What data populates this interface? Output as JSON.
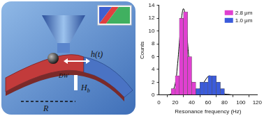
{
  "chart_data": {
    "type": "histogram",
    "bins": [
      15,
      20,
      25,
      30,
      35,
      40,
      45,
      50,
      55,
      60,
      65,
      70,
      75,
      80
    ],
    "series": [
      {
        "name": "2.8 μm",
        "color": "#e040d0",
        "counts": [
          1,
          3,
          12,
          13,
          6,
          2,
          0,
          0,
          0,
          0,
          0,
          0,
          0
        ]
      },
      {
        "name": "1.0 μm",
        "color": "#3b5bdb",
        "counts": [
          0,
          0,
          0,
          0,
          0,
          0,
          1,
          2,
          2,
          3,
          3,
          2,
          1
        ]
      }
    ],
    "fits": [
      {
        "type": "line",
        "color": "#000000",
        "x": [
          10,
          15,
          20,
          22.5,
          25,
          27.5,
          30,
          32.5,
          35,
          37.5,
          40,
          45,
          50
        ],
        "values": [
          0,
          0.2,
          1.8,
          4.4,
          8.2,
          11.9,
          13.5,
          11.9,
          8.2,
          4.4,
          1.8,
          0.2,
          0
        ]
      },
      {
        "type": "line",
        "color": "#000000",
        "x": [
          35,
          40,
          45,
          50,
          55,
          60,
          62,
          65,
          70,
          75,
          80,
          85,
          90
        ],
        "values": [
          0,
          0.1,
          0.3,
          1.0,
          2.0,
          2.9,
          3.0,
          2.8,
          1.8,
          0.8,
          0.2,
          0.1,
          0
        ]
      }
    ],
    "x_label": "Resonance frequency (Hz)",
    "y_label": "Counts",
    "xlim": [
      0,
      120
    ],
    "xticks": [
      0,
      20,
      40,
      60,
      80,
      100,
      120
    ],
    "ylim": [
      0,
      14
    ],
    "yticks": [
      0,
      2,
      4,
      6,
      8,
      10,
      12,
      14
    ],
    "legend": "upper right",
    "grid": false
  },
  "diagram": {
    "labels": {
      "domain_wall": "DW",
      "drive": "h(t)",
      "radius": "R",
      "field": {
        "text": "H",
        "subscript": "b"
      }
    }
  }
}
